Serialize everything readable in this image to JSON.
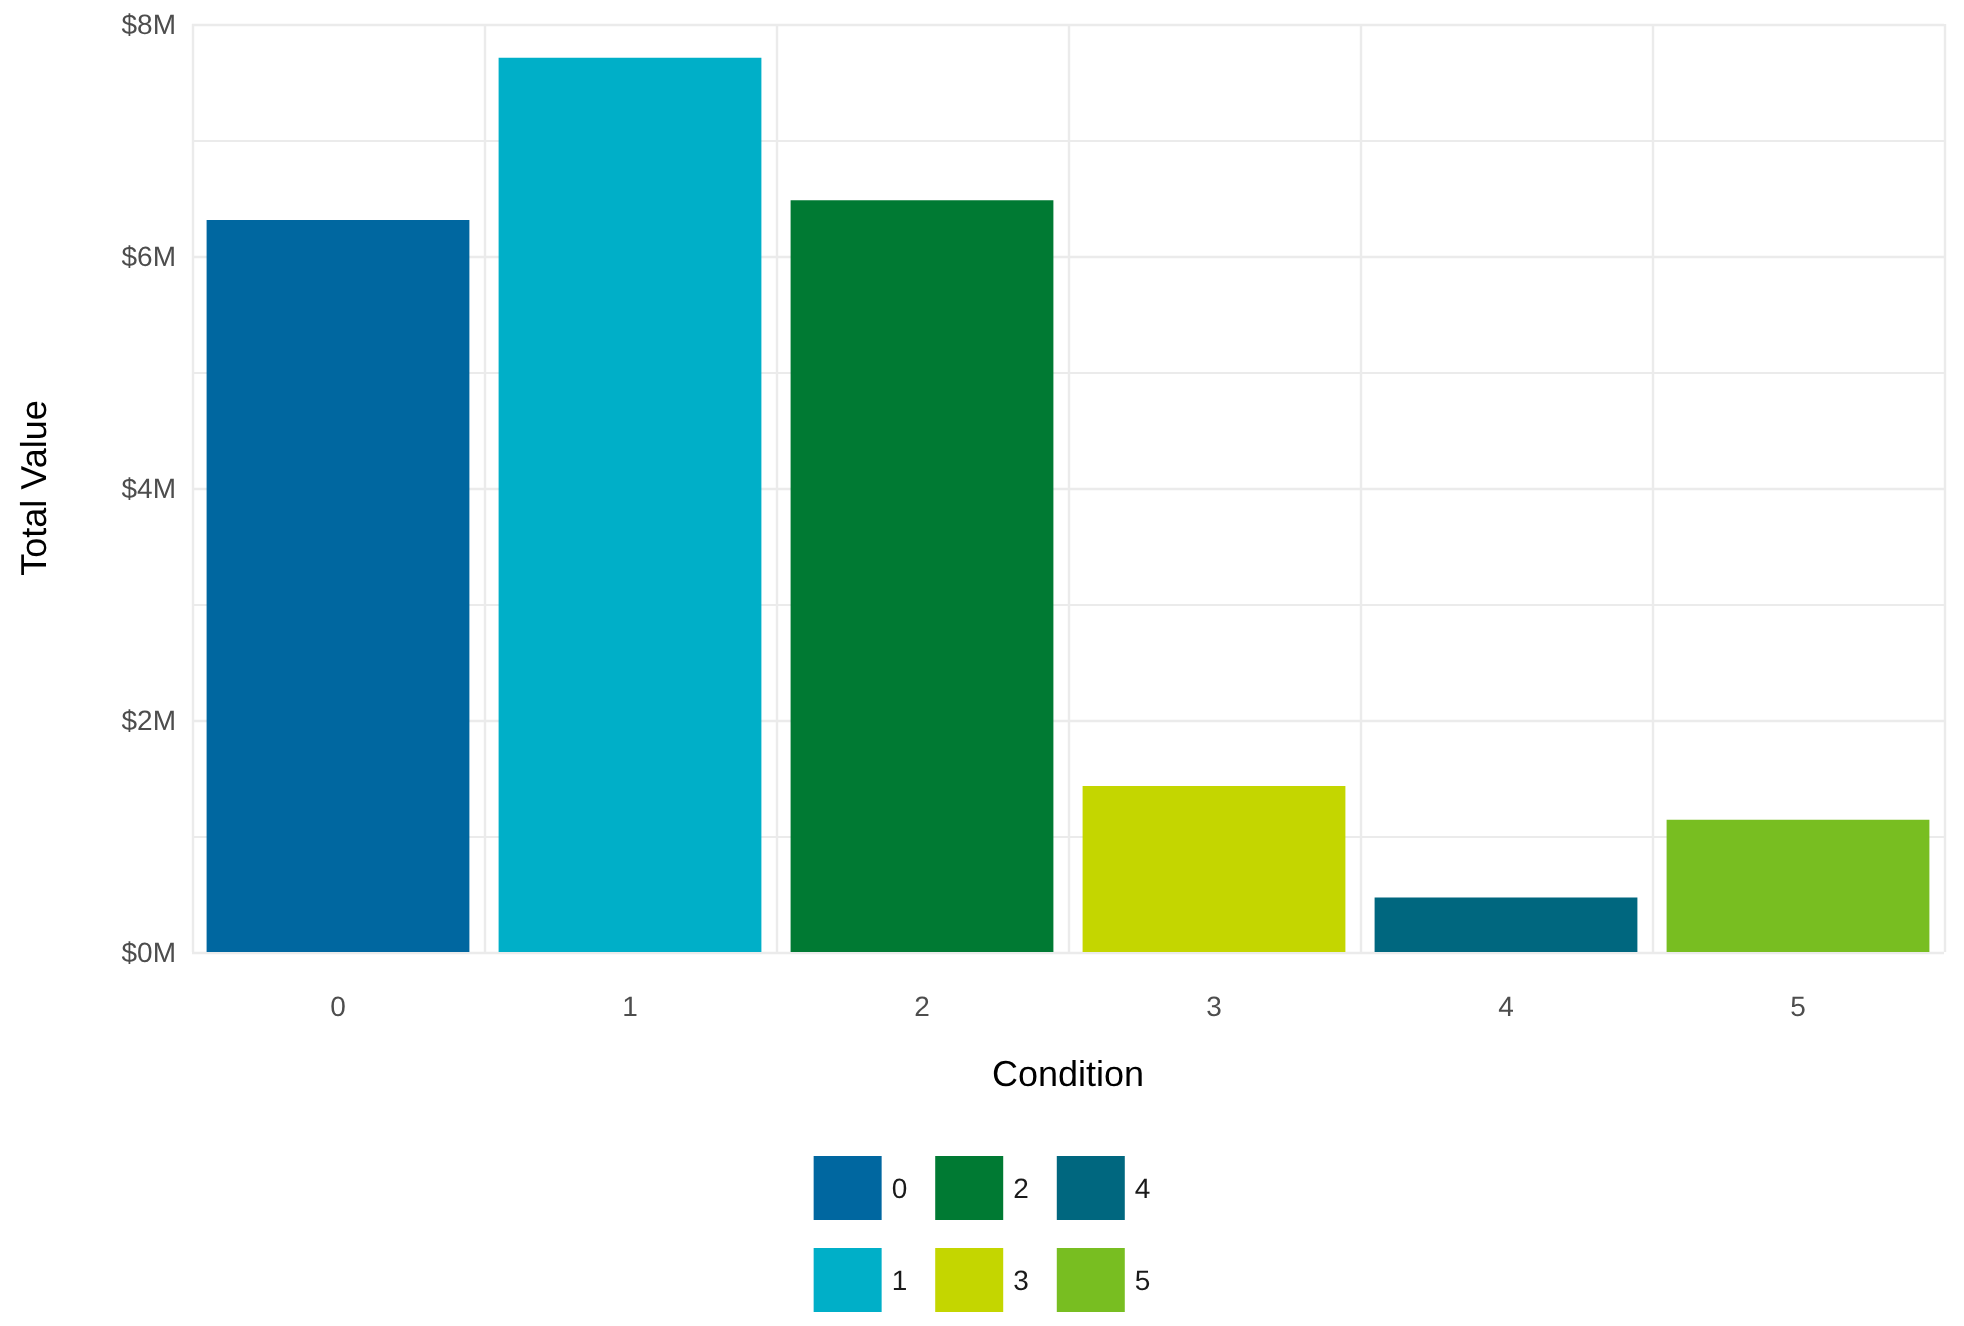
{
  "chart_data": {
    "type": "bar",
    "xlabel": "Condition",
    "ylabel": "Total Value",
    "categories": [
      "0",
      "1",
      "2",
      "3",
      "4",
      "5"
    ],
    "stacked": true,
    "series": [
      {
        "name": "0",
        "color": "#0067a0",
        "values": [
          6.31,
          null,
          null,
          null,
          null,
          null
        ]
      },
      {
        "name": "1",
        "color": "#00afc8",
        "values": [
          null,
          7.71,
          null,
          null,
          null,
          null
        ]
      },
      {
        "name": "2",
        "color": "#007a33",
        "values": [
          null,
          null,
          6.48,
          null,
          null,
          null
        ]
      },
      {
        "name": "3",
        "color": "#c4d600",
        "values": [
          null,
          null,
          null,
          1.43,
          null,
          null
        ]
      },
      {
        "name": "4",
        "color": "#00677f",
        "values": [
          null,
          null,
          null,
          null,
          0.47,
          null
        ]
      },
      {
        "name": "5",
        "color": "#78be21",
        "values": [
          null,
          null,
          null,
          null,
          null,
          1.14
        ]
      }
    ],
    "ylim": [
      0,
      8
    ],
    "yticks": [
      {
        "value": 0,
        "label": "$0M"
      },
      {
        "value": 2,
        "label": "$2M"
      },
      {
        "value": 4,
        "label": "$4M"
      },
      {
        "value": 6,
        "label": "$6M"
      },
      {
        "value": 8,
        "label": "$8M"
      }
    ],
    "grid": true,
    "legend": "bottom"
  }
}
